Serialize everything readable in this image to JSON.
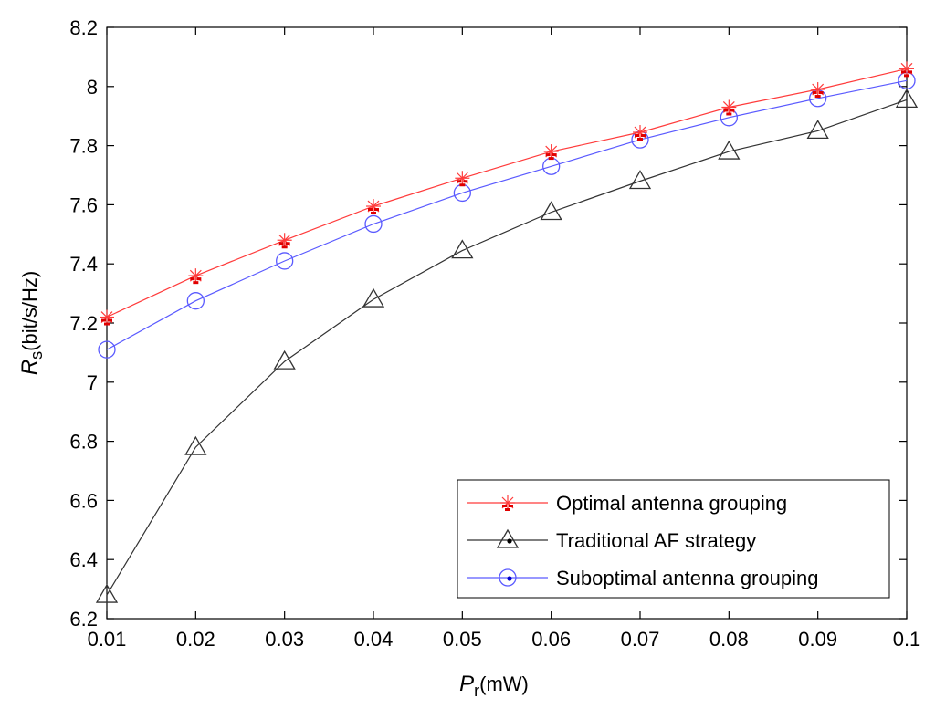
{
  "chart_data": {
    "type": "line",
    "x": [
      0.01,
      0.02,
      0.03,
      0.04,
      0.05,
      0.06,
      0.07,
      0.08,
      0.09,
      0.1
    ],
    "x_tick_labels": [
      "0.01",
      "0.02",
      "0.03",
      "0.04",
      "0.05",
      "0.06",
      "0.07",
      "0.08",
      "0.09",
      "0.1"
    ],
    "y_ticks": [
      6.2,
      6.4,
      6.6,
      6.8,
      7.0,
      7.2,
      7.4,
      7.6,
      7.8,
      8.0,
      8.2
    ],
    "y_tick_labels": [
      "6.2",
      "6.4",
      "6.6",
      "6.8",
      "7",
      "7.2",
      "7.4",
      "7.6",
      "7.8",
      "8",
      "8.2"
    ],
    "xlim": [
      0.01,
      0.1
    ],
    "ylim": [
      6.2,
      8.2
    ],
    "xlabel": {
      "main": "P",
      "sub": "r",
      "unit": "(mW)"
    },
    "ylabel": {
      "main": "R",
      "sub": "s",
      "unit": "(bit/s/Hz)"
    },
    "grid": false,
    "legend_position": "bottom-right",
    "series": [
      {
        "name": "Optimal antenna grouping",
        "color": "#ff3b3b",
        "marker": "star",
        "values": [
          7.22,
          7.36,
          7.48,
          7.595,
          7.69,
          7.78,
          7.845,
          7.93,
          7.99,
          8.06
        ]
      },
      {
        "name": "Traditional AF strategy",
        "color": "#333333",
        "marker": "triangle",
        "values": [
          6.28,
          6.78,
          7.07,
          7.28,
          7.445,
          7.575,
          7.68,
          7.78,
          7.85,
          7.955
        ]
      },
      {
        "name": "Suboptimal antenna grouping",
        "color": "#5a5aff",
        "marker": "circle",
        "values": [
          7.11,
          7.275,
          7.41,
          7.535,
          7.64,
          7.73,
          7.82,
          7.895,
          7.96,
          8.02
        ]
      }
    ]
  }
}
